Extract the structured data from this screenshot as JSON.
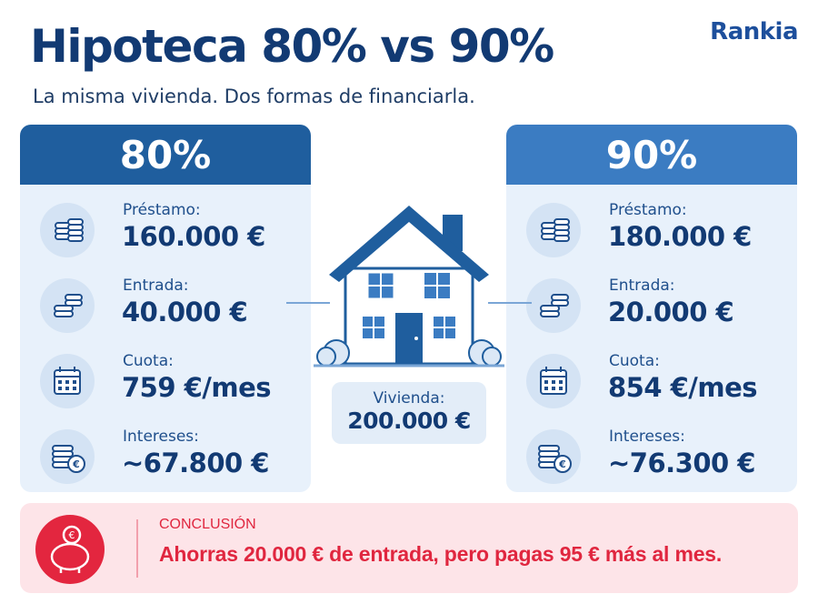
{
  "brand": "Rankia",
  "header": {
    "title": "Hipoteca 80% vs 90%",
    "subtitle": "La misma vivienda. Dos formas de financiarla."
  },
  "options": [
    {
      "label": "80%",
      "items": [
        {
          "label": "Préstamo:",
          "value": "160.000 €"
        },
        {
          "label": "Entrada:",
          "value": "40.000 €"
        },
        {
          "label": "Cuota:",
          "value": "759 €/mes"
        },
        {
          "label": "Intereses:",
          "value": "~67.800 €"
        }
      ]
    },
    {
      "label": "90%",
      "items": [
        {
          "label": "Préstamo:",
          "value": "180.000 €"
        },
        {
          "label": "Entrada:",
          "value": "20.000 €"
        },
        {
          "label": "Cuota:",
          "value": "854 €/mes"
        },
        {
          "label": "Intereses:",
          "value": "~76.300 €"
        }
      ]
    }
  ],
  "house": {
    "label": "Vivienda:",
    "value": "200.000 €"
  },
  "conclusion": {
    "label": "CONCLUSIÓN",
    "text": "Ahorras 20.000 € de entrada, pero pagas 95 € más al mes."
  }
}
